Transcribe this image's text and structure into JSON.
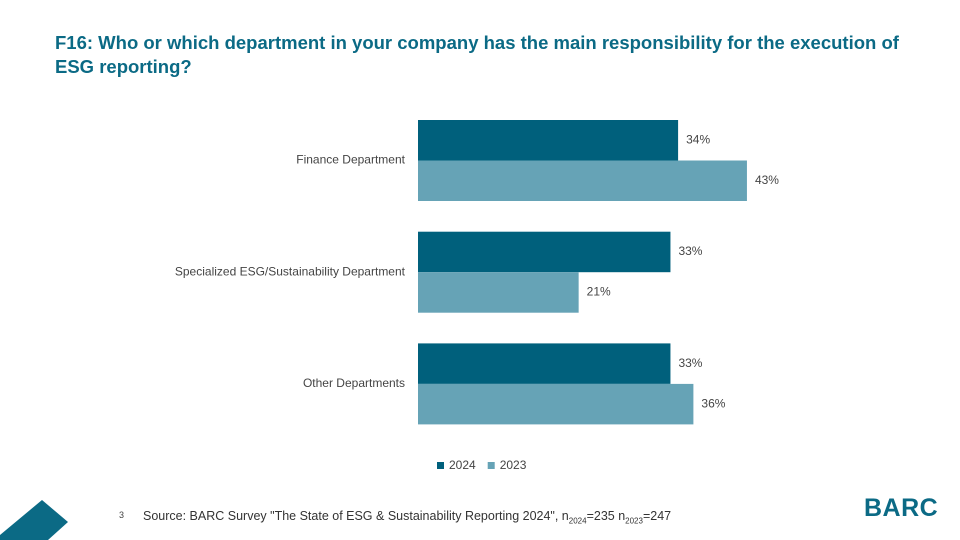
{
  "chart_data": {
    "type": "bar",
    "orientation": "horizontal",
    "title": "F16: Who or which department in your company has the main responsibility for the execution of ESG reporting?",
    "categories": [
      "Finance Department",
      "Specialized ESG/Sustainability Department",
      "Other Departments"
    ],
    "series": [
      {
        "name": "2024",
        "color": "#00607c",
        "values": [
          34,
          33,
          33
        ],
        "value_labels": [
          "34%",
          "33%",
          "33%"
        ]
      },
      {
        "name": "2023",
        "color": "#66a3b6",
        "values": [
          43,
          21,
          36
        ],
        "value_labels": [
          "43%",
          "21%",
          "36%"
        ]
      }
    ],
    "legend": "bottom"
  },
  "footer": {
    "page_number": "3",
    "source": [
      "Source: BARC Survey \"The State of ESG & Sustainability Reporting 2024\", n",
      "2024",
      "=235 n",
      "2023",
      "=247"
    ],
    "logo": "BARC"
  }
}
